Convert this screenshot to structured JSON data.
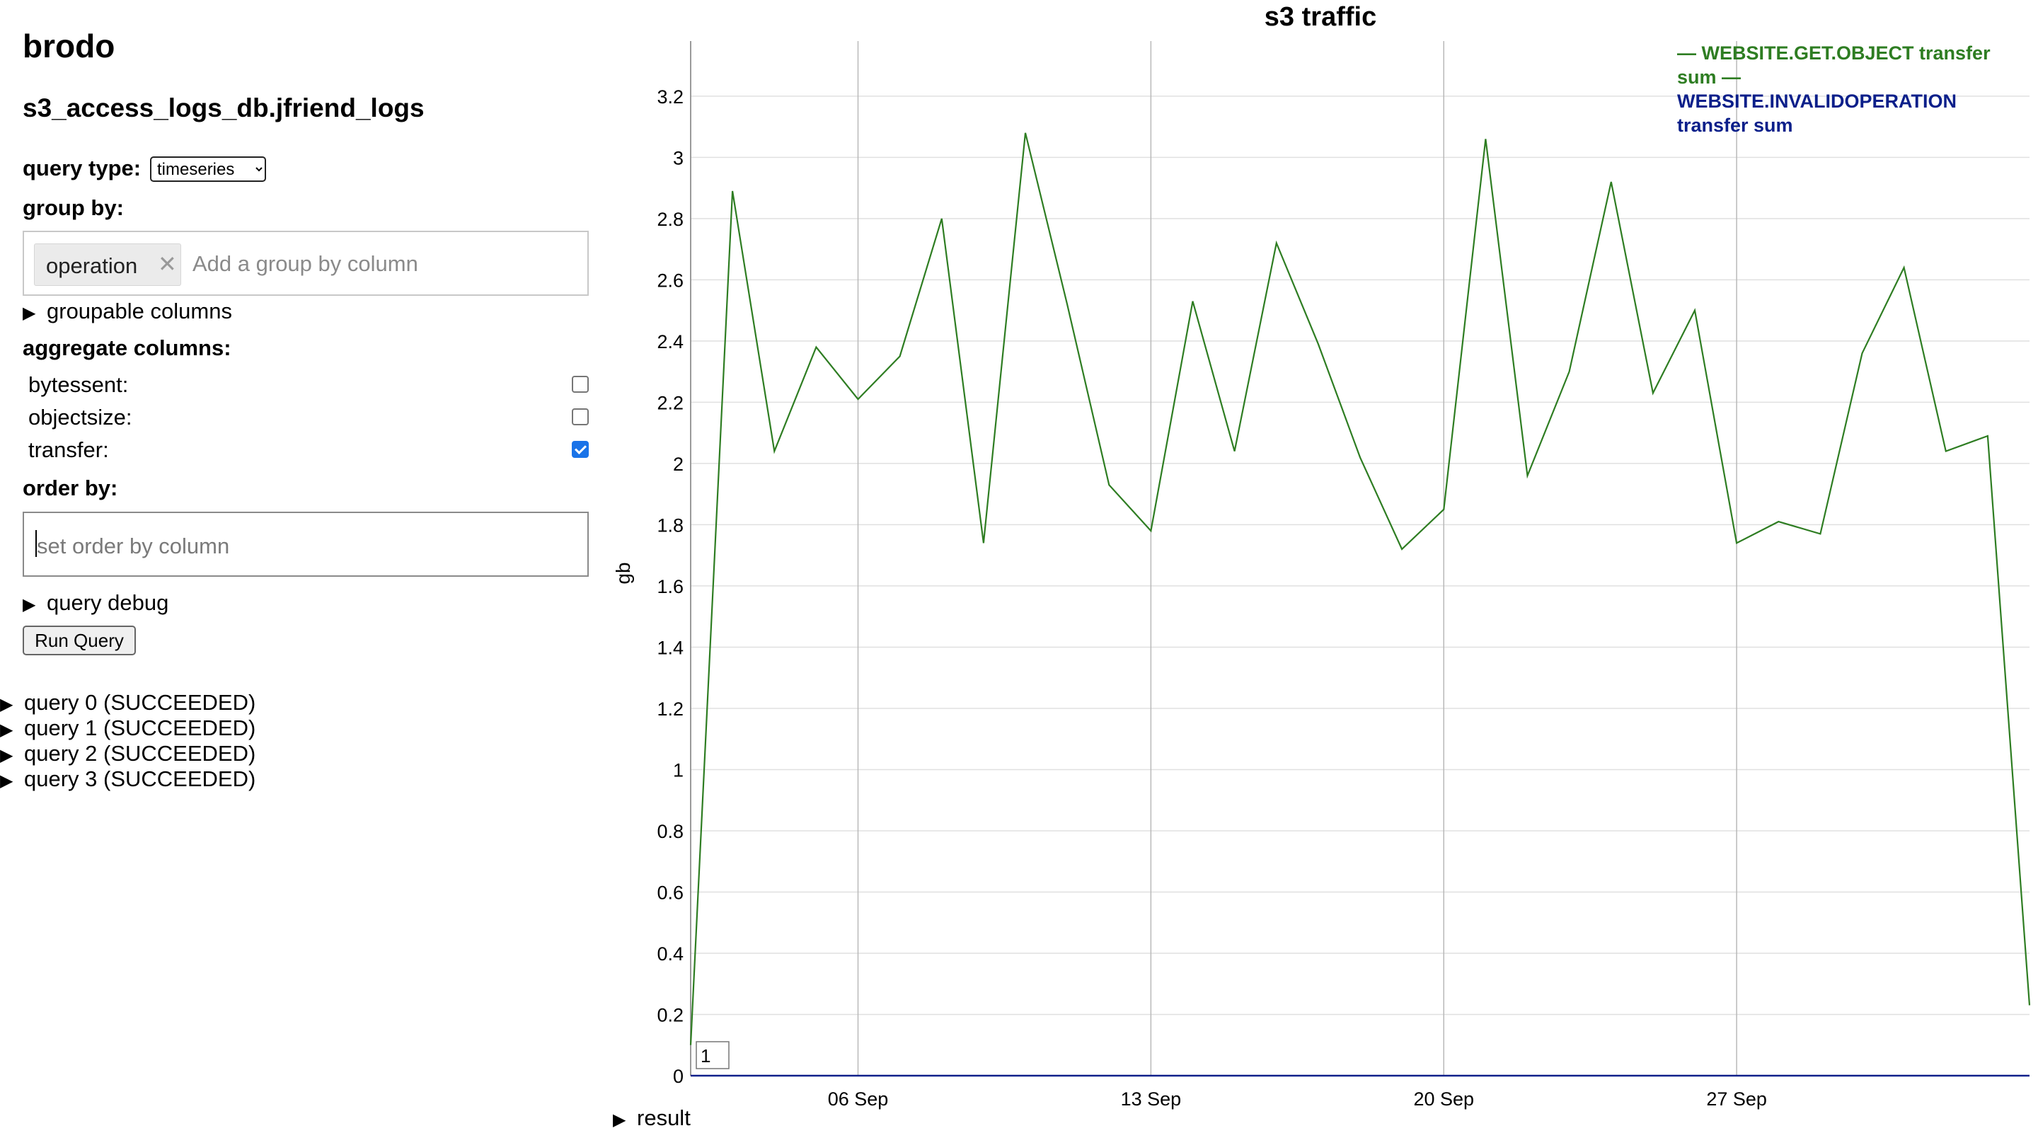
{
  "app": {
    "title": "brodo",
    "db_title": "s3_access_logs_db.jfriend_logs"
  },
  "query_type": {
    "label": "query type:",
    "value": "timeseries",
    "options": [
      "timeseries"
    ]
  },
  "group_by": {
    "label": "group by:",
    "tags": [
      {
        "label": "operation",
        "remove_icon": "close-icon"
      }
    ],
    "placeholder": "Add a group by column",
    "groupable_label": "groupable columns"
  },
  "aggregate": {
    "label": "aggregate columns:",
    "columns": [
      {
        "label": "bytessent:",
        "checked": false
      },
      {
        "label": "objectsize:",
        "checked": false
      },
      {
        "label": "transfer:",
        "checked": true
      }
    ]
  },
  "order_by": {
    "label": "order by:",
    "placeholder": "set order by column"
  },
  "debug": {
    "label": "query debug"
  },
  "run_button": {
    "label": "Run Query"
  },
  "queries": [
    {
      "label": "query 0 (SUCCEEDED)"
    },
    {
      "label": "query 1 (SUCCEEDED)"
    },
    {
      "label": "query 2 (SUCCEEDED)"
    },
    {
      "label": "query 3 (SUCCEEDED)"
    }
  ],
  "result": {
    "label": "result"
  },
  "colors": {
    "series_get": "#2e7d22",
    "series_invalid": "#0b1f8a",
    "grid": "#e0e0e0",
    "checkbox_accent": "#1a73e8"
  },
  "chart_data": {
    "type": "line",
    "title": "s3 traffic",
    "xlabel": "",
    "ylabel": "gb",
    "y_ticks": [
      "0",
      "0.2",
      "0.4",
      "0.6",
      "0.8",
      "1",
      "1.2",
      "1.4",
      "1.6",
      "1.8",
      "2",
      "2.2",
      "2.4",
      "2.6",
      "2.8",
      "3",
      "3.2"
    ],
    "ylim": [
      0,
      3.38
    ],
    "x_ticks": [
      {
        "label": "06 Sep",
        "date": "2020-09-06"
      },
      {
        "label": "13 Sep",
        "date": "2020-09-13"
      },
      {
        "label": "20 Sep",
        "date": "2020-09-20"
      },
      {
        "label": "27 Sep",
        "date": "2020-09-27"
      }
    ],
    "xlim": [
      "2020-09-02",
      "2020-10-04"
    ],
    "grid": "horizontal and vertical",
    "legend_position": "top-right",
    "zoom_box_value": "1",
    "series": [
      {
        "name": "WEBSITE.GET.OBJECT transfer sum",
        "color": "#2e7d22",
        "x": [
          "2020-09-02",
          "2020-09-03",
          "2020-09-04",
          "2020-09-05",
          "2020-09-06",
          "2020-09-07",
          "2020-09-08",
          "2020-09-09",
          "2020-09-10",
          "2020-09-11",
          "2020-09-12",
          "2020-09-13",
          "2020-09-14",
          "2020-09-15",
          "2020-09-16",
          "2020-09-17",
          "2020-09-18",
          "2020-09-19",
          "2020-09-20",
          "2020-09-21",
          "2020-09-22",
          "2020-09-23",
          "2020-09-24",
          "2020-09-25",
          "2020-09-26",
          "2020-09-27",
          "2020-09-28",
          "2020-09-29",
          "2020-09-30",
          "2020-10-01",
          "2020-10-02",
          "2020-10-03",
          "2020-10-04"
        ],
        "values": [
          0.1,
          2.89,
          2.04,
          2.38,
          2.21,
          2.35,
          2.8,
          1.74,
          3.08,
          2.52,
          1.93,
          1.78,
          2.53,
          2.04,
          2.72,
          2.39,
          2.02,
          1.72,
          1.85,
          3.06,
          1.96,
          2.3,
          2.92,
          2.23,
          2.5,
          1.74,
          1.81,
          1.77,
          2.36,
          2.64,
          2.04,
          2.09,
          0.23
        ]
      },
      {
        "name": "WEBSITE.INVALIDOPERATION transfer sum",
        "color": "#0b1f8a",
        "x": [
          "2020-09-02",
          "2020-10-04"
        ],
        "values": [
          0,
          0
        ]
      }
    ]
  }
}
